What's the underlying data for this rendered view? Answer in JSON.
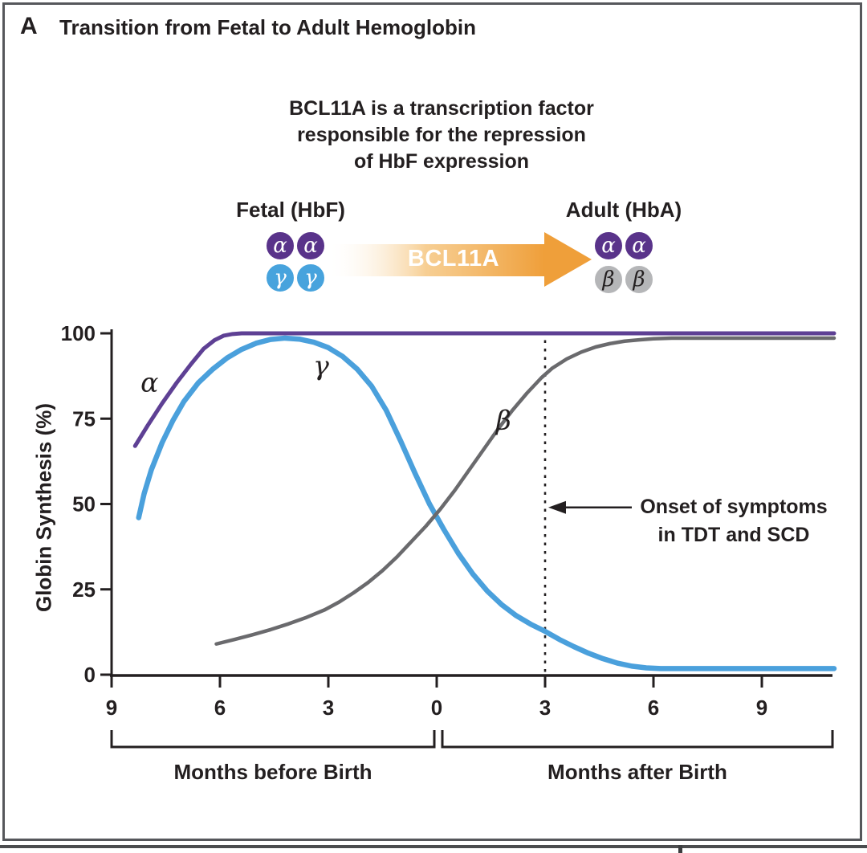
{
  "panel": {
    "letter": "A",
    "title": "Transition from Fetal to Adult Hemoglobin"
  },
  "annotation": {
    "lines": [
      "BCL11A is a transcription factor",
      "responsible for the repression",
      "of HbF expression"
    ]
  },
  "diagram": {
    "fetal": {
      "label": "Fetal (HbF)",
      "top_subunits": [
        "α",
        "α"
      ],
      "bottom_subunits": [
        "γ",
        "γ"
      ]
    },
    "adult": {
      "label": "Adult (HbA)",
      "top_subunits": [
        "α",
        "α"
      ],
      "bottom_subunits": [
        "β",
        "β"
      ]
    },
    "arrow_label": "BCL11A",
    "colors": {
      "alpha_subunit": "#59338a",
      "gamma_subunit": "#47a3dd",
      "beta_subunit": "#b5b6b8",
      "arrow": "#ef9f3a"
    }
  },
  "chart_data": {
    "type": "line",
    "title": "",
    "xlabel_groups": [
      "Months before Birth",
      "Months after Birth"
    ],
    "ylabel": "Globin Synthesis (%)",
    "x_axis": {
      "tick_months": [
        -9,
        -6,
        -3,
        0,
        3,
        6,
        9
      ],
      "tick_labels": [
        "9",
        "6",
        "3",
        "0",
        "3",
        "6",
        "9"
      ],
      "range_months": [
        -9,
        11
      ]
    },
    "y_axis": {
      "ticks": [
        0,
        25,
        50,
        75,
        100
      ],
      "tick_labels": [
        "0",
        "25",
        "50",
        "75",
        "100"
      ],
      "range": [
        0,
        100
      ]
    },
    "axis_color": "#231f20",
    "series": [
      {
        "name": "α",
        "color": "#5e4094",
        "width": 5,
        "label": {
          "month": -7.95,
          "pct": 85.5
        },
        "points": [
          [
            -8.35,
            67
          ],
          [
            -8.0,
            73
          ],
          [
            -7.6,
            79.5
          ],
          [
            -7.2,
            85.5
          ],
          [
            -6.8,
            91
          ],
          [
            -6.45,
            95.5
          ],
          [
            -6.15,
            98
          ],
          [
            -5.9,
            99.3
          ],
          [
            -5.65,
            99.8
          ],
          [
            -5.4,
            100
          ],
          [
            11,
            100
          ]
        ]
      },
      {
        "name": "γ",
        "color": "#4aa0dc",
        "width": 6.5,
        "label": {
          "month": -3.2,
          "pct": 90.5
        },
        "points": [
          [
            -8.25,
            46
          ],
          [
            -8.1,
            53
          ],
          [
            -7.9,
            60
          ],
          [
            -7.6,
            68
          ],
          [
            -7.3,
            74.5
          ],
          [
            -7.0,
            80
          ],
          [
            -6.6,
            85.5
          ],
          [
            -6.2,
            89.5
          ],
          [
            -5.8,
            92.8
          ],
          [
            -5.4,
            95.3
          ],
          [
            -5.0,
            97.1
          ],
          [
            -4.6,
            98.2
          ],
          [
            -4.2,
            98.6
          ],
          [
            -3.8,
            98.3
          ],
          [
            -3.4,
            97.4
          ],
          [
            -3.0,
            95.8
          ],
          [
            -2.6,
            93.2
          ],
          [
            -2.2,
            89.5
          ],
          [
            -1.8,
            84.5
          ],
          [
            -1.4,
            77.5
          ],
          [
            -1.0,
            68.5
          ],
          [
            -0.6,
            59
          ],
          [
            -0.2,
            50
          ],
          [
            0.2,
            42.5
          ],
          [
            0.6,
            35.5
          ],
          [
            1.0,
            29.5
          ],
          [
            1.4,
            24.5
          ],
          [
            1.8,
            20.5
          ],
          [
            2.2,
            17.3
          ],
          [
            2.6,
            14.8
          ],
          [
            3.0,
            12.7
          ],
          [
            3.4,
            10.3
          ],
          [
            3.8,
            8.2
          ],
          [
            4.2,
            6.3
          ],
          [
            4.6,
            4.7
          ],
          [
            5.0,
            3.4
          ],
          [
            5.4,
            2.5
          ],
          [
            5.8,
            2.0
          ],
          [
            6.2,
            1.8
          ],
          [
            11,
            1.8
          ]
        ]
      },
      {
        "name": "β",
        "color": "#6a6a6d",
        "width": 4.5,
        "label": {
          "month": 1.85,
          "pct": 74.5
        },
        "points": [
          [
            -6.1,
            9
          ],
          [
            -5.6,
            10.3
          ],
          [
            -5.1,
            11.7
          ],
          [
            -4.6,
            13.2
          ],
          [
            -4.1,
            14.9
          ],
          [
            -3.6,
            16.8
          ],
          [
            -3.1,
            19
          ],
          [
            -2.7,
            21.3
          ],
          [
            -2.3,
            24
          ],
          [
            -1.9,
            27
          ],
          [
            -1.5,
            30.5
          ],
          [
            -1.1,
            34.5
          ],
          [
            -0.7,
            39
          ],
          [
            -0.3,
            43.5
          ],
          [
            0.1,
            48.5
          ],
          [
            0.5,
            54
          ],
          [
            0.9,
            60
          ],
          [
            1.3,
            66
          ],
          [
            1.7,
            72
          ],
          [
            2.1,
            77.5
          ],
          [
            2.5,
            82.5
          ],
          [
            2.9,
            87
          ],
          [
            3.2,
            89.8
          ],
          [
            3.6,
            92.5
          ],
          [
            4.0,
            94.5
          ],
          [
            4.4,
            96
          ],
          [
            4.8,
            97
          ],
          [
            5.2,
            97.7
          ],
          [
            5.6,
            98.1
          ],
          [
            6.0,
            98.4
          ],
          [
            6.5,
            98.6
          ],
          [
            11,
            98.6
          ]
        ]
      }
    ],
    "reference_line": {
      "x_month": 3,
      "style": "dashed"
    },
    "callout": {
      "lines": [
        "Onset of symptoms",
        "in TDT and SCD"
      ],
      "arrow_points_to_month": 3,
      "arrow_at_pct": 49
    }
  }
}
